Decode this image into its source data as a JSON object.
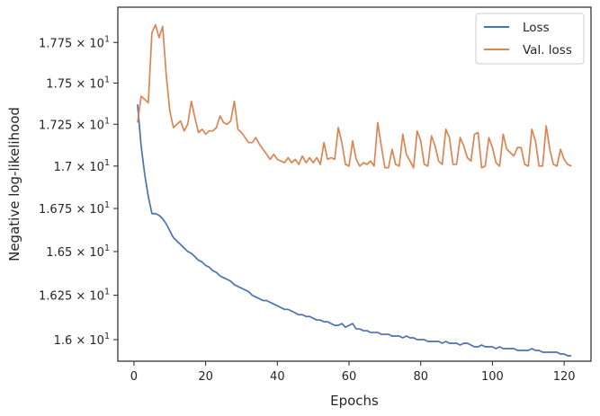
{
  "chart_data": {
    "type": "line",
    "xlabel": "Epochs",
    "ylabel": "Negative log-likelihood",
    "xlim": [
      -4.5,
      127.5
    ],
    "ylim": [
      15.88,
      17.97
    ],
    "x_scale": "linear",
    "y_scale": "log",
    "grid": false,
    "legend_position": "top-right",
    "x_ticks": [
      0,
      20,
      40,
      60,
      80,
      100,
      120
    ],
    "x_tick_labels": [
      "0",
      "20",
      "40",
      "60",
      "80",
      "100",
      "120"
    ],
    "y_ticks": [
      16.0,
      16.25,
      16.5,
      16.75,
      17.0,
      17.25,
      17.5,
      17.75
    ],
    "y_tick_labels": [
      {
        "mantissa": "1.6",
        "base": "10",
        "exp": "1"
      },
      {
        "mantissa": "1.625",
        "base": "10",
        "exp": "1"
      },
      {
        "mantissa": "1.65",
        "base": "10",
        "exp": "1"
      },
      {
        "mantissa": "1.675",
        "base": "10",
        "exp": "1"
      },
      {
        "mantissa": "1.7",
        "base": "10",
        "exp": "1"
      },
      {
        "mantissa": "1.725",
        "base": "10",
        "exp": "1"
      },
      {
        "mantissa": "1.75",
        "base": "10",
        "exp": "1"
      },
      {
        "mantissa": "1.775",
        "base": "10",
        "exp": "1"
      }
    ],
    "series": [
      {
        "name": "Loss",
        "color": "#4c72b0",
        "x": [
          1,
          2,
          3,
          4,
          5,
          6,
          7,
          8,
          9,
          10,
          11,
          12,
          13,
          14,
          15,
          16,
          17,
          18,
          19,
          20,
          21,
          22,
          23,
          24,
          25,
          26,
          27,
          28,
          29,
          30,
          31,
          32,
          33,
          34,
          35,
          36,
          37,
          38,
          39,
          40,
          41,
          42,
          43,
          44,
          45,
          46,
          47,
          48,
          49,
          50,
          51,
          52,
          53,
          54,
          55,
          56,
          57,
          58,
          59,
          60,
          61,
          62,
          63,
          64,
          65,
          66,
          67,
          68,
          69,
          70,
          71,
          72,
          73,
          74,
          75,
          76,
          77,
          78,
          79,
          80,
          81,
          82,
          83,
          84,
          85,
          86,
          87,
          88,
          89,
          90,
          91,
          92,
          93,
          94,
          95,
          96,
          97,
          98,
          99,
          100,
          101,
          102,
          103,
          104,
          105,
          106,
          107,
          108,
          109,
          110,
          111,
          112,
          113,
          114,
          115,
          116,
          117,
          118,
          119,
          120,
          121,
          122
        ],
        "values": [
          17.37,
          17.12,
          16.95,
          16.82,
          16.72,
          16.72,
          16.71,
          16.69,
          16.66,
          16.62,
          16.58,
          16.56,
          16.54,
          16.52,
          16.5,
          16.49,
          16.47,
          16.45,
          16.44,
          16.42,
          16.41,
          16.39,
          16.38,
          16.36,
          16.35,
          16.34,
          16.33,
          16.31,
          16.3,
          16.29,
          16.28,
          16.27,
          16.25,
          16.24,
          16.23,
          16.22,
          16.22,
          16.21,
          16.2,
          16.19,
          16.18,
          16.17,
          16.17,
          16.16,
          16.15,
          16.14,
          16.14,
          16.13,
          16.13,
          16.12,
          16.11,
          16.11,
          16.1,
          16.1,
          16.09,
          16.08,
          16.08,
          16.09,
          16.07,
          16.08,
          16.09,
          16.06,
          16.06,
          16.05,
          16.05,
          16.04,
          16.04,
          16.04,
          16.03,
          16.03,
          16.03,
          16.02,
          16.02,
          16.02,
          16.01,
          16.02,
          16.01,
          16.01,
          16.0,
          16.0,
          16.0,
          15.99,
          15.99,
          15.99,
          15.99,
          15.98,
          15.99,
          15.98,
          15.98,
          15.98,
          15.97,
          15.98,
          15.98,
          15.97,
          15.96,
          15.96,
          15.97,
          15.96,
          15.96,
          15.96,
          15.95,
          15.96,
          15.95,
          15.95,
          15.95,
          15.95,
          15.94,
          15.94,
          15.94,
          15.94,
          15.95,
          15.94,
          15.94,
          15.93,
          15.93,
          15.93,
          15.93,
          15.93,
          15.92,
          15.92,
          15.91,
          15.91
        ]
      },
      {
        "name": "Val. loss",
        "color": "#dd8452",
        "x": [
          1,
          2,
          3,
          4,
          5,
          6,
          7,
          8,
          9,
          10,
          11,
          12,
          13,
          14,
          15,
          16,
          17,
          18,
          19,
          20,
          21,
          22,
          23,
          24,
          25,
          26,
          27,
          28,
          29,
          30,
          31,
          32,
          33,
          34,
          35,
          36,
          37,
          38,
          39,
          40,
          41,
          42,
          43,
          44,
          45,
          46,
          47,
          48,
          49,
          50,
          51,
          52,
          53,
          54,
          55,
          56,
          57,
          58,
          59,
          60,
          61,
          62,
          63,
          64,
          65,
          66,
          67,
          68,
          69,
          70,
          71,
          72,
          73,
          74,
          75,
          76,
          77,
          78,
          79,
          80,
          81,
          82,
          83,
          84,
          85,
          86,
          87,
          88,
          89,
          90,
          91,
          92,
          93,
          94,
          95,
          96,
          97,
          98,
          99,
          100,
          101,
          102,
          103,
          104,
          105,
          106,
          107,
          108,
          109,
          110,
          111,
          112,
          113,
          114,
          115,
          116,
          117,
          118,
          119,
          120,
          121,
          122
        ],
        "values": [
          17.26,
          17.42,
          17.4,
          17.38,
          17.81,
          17.86,
          17.78,
          17.85,
          17.55,
          17.33,
          17.23,
          17.25,
          17.27,
          17.21,
          17.25,
          17.39,
          17.29,
          17.2,
          17.22,
          17.19,
          17.21,
          17.21,
          17.23,
          17.3,
          17.26,
          17.25,
          17.27,
          17.39,
          17.22,
          17.2,
          17.17,
          17.14,
          17.14,
          17.17,
          17.13,
          17.1,
          17.07,
          17.04,
          17.07,
          17.04,
          17.03,
          17.02,
          17.05,
          17.02,
          17.04,
          17.01,
          17.06,
          17.02,
          17.05,
          17.02,
          17.05,
          17.01,
          17.14,
          17.04,
          17.05,
          17.04,
          17.23,
          17.14,
          17.01,
          17.0,
          17.15,
          17.04,
          17.0,
          17.02,
          17.01,
          17.03,
          17.0,
          17.26,
          17.12,
          16.99,
          16.99,
          17.1,
          17.01,
          17.0,
          17.19,
          17.07,
          17.03,
          16.99,
          17.21,
          17.15,
          17.01,
          17.0,
          17.18,
          17.12,
          17.03,
          17.01,
          17.22,
          17.17,
          17.01,
          17.01,
          17.17,
          17.12,
          17.05,
          17.03,
          17.19,
          17.2,
          16.99,
          17.0,
          17.17,
          17.11,
          17.02,
          17.0,
          17.19,
          17.1,
          17.08,
          17.06,
          17.11,
          17.11,
          17.01,
          17.0,
          17.22,
          17.15,
          17.0,
          17.0,
          17.24,
          17.1,
          17.01,
          17.0,
          17.1,
          17.04,
          17.01,
          17.0
        ]
      }
    ]
  }
}
